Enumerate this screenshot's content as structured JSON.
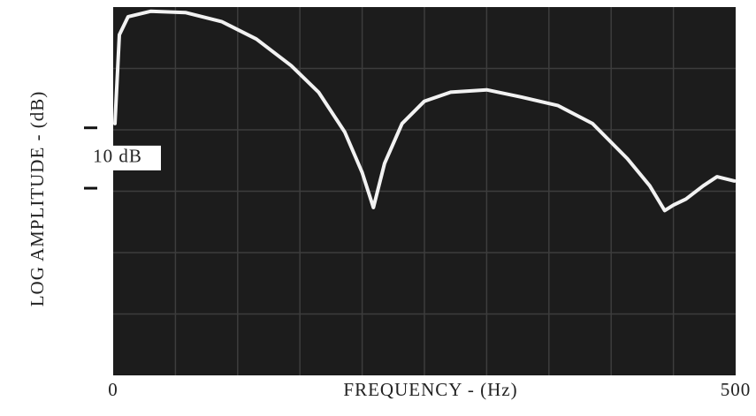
{
  "chart_data": {
    "type": "line",
    "x_label": "FREQUENCY - (Hz)",
    "y_label": "LOG AMPLITUDE - (dB)",
    "xlim": [
      0,
      500
    ],
    "xticks": [
      0,
      500
    ],
    "ylim": [
      -31,
      30
    ],
    "scale_label": "10 dB",
    "scale_marks": [
      0,
      10
    ],
    "grid": true,
    "series": [
      {
        "color": "#f2f2f2",
        "x": [
          1.4,
          5,
          12,
          30,
          58,
          87,
          115,
          143,
          165,
          186,
          200,
          209,
          218,
          232,
          250,
          271,
          300,
          328,
          357,
          385,
          413,
          431,
          443,
          450,
          460,
          474,
          485,
          499
        ],
        "values": [
          10.7,
          25.4,
          28.4,
          29.3,
          29.1,
          27.6,
          24.7,
          20.3,
          15.9,
          9.3,
          2.6,
          -3.2,
          4.1,
          10.7,
          14.4,
          15.9,
          16.3,
          15.1,
          13.7,
          10.7,
          4.9,
          0.4,
          -3.7,
          -2.8,
          -1.8,
          0.4,
          1.9,
          1.2
        ]
      }
    ]
  }
}
